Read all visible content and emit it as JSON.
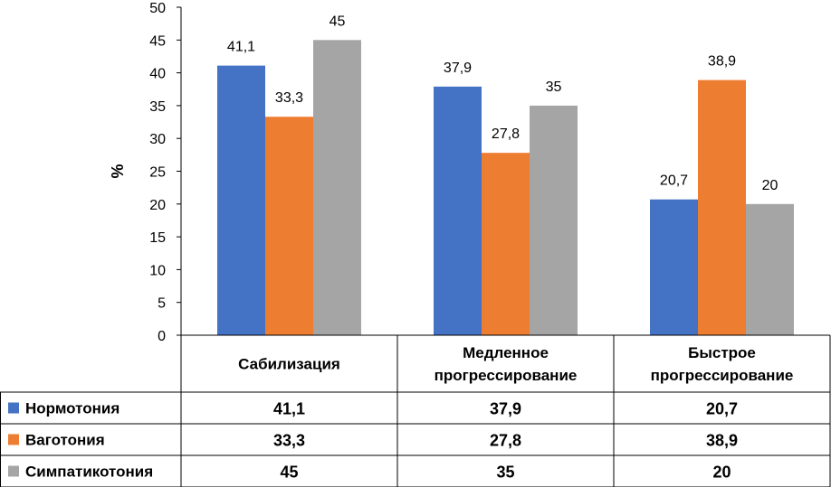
{
  "chart_data": {
    "type": "bar",
    "title": "",
    "xlabel": "",
    "ylabel": "%",
    "ylim": [
      0,
      50
    ],
    "yticks": [
      0,
      5,
      10,
      15,
      20,
      25,
      30,
      35,
      40,
      45,
      50
    ],
    "grid": false,
    "legend": "data-table-left",
    "categories": [
      "Сабилизация",
      "Медленное прогрессирование",
      "Быстрое прогрессирование"
    ],
    "category_lines": [
      [
        "Сабилизация"
      ],
      [
        "Медленное",
        "прогрессирование"
      ],
      [
        "Быстрое",
        "прогрессирование"
      ]
    ],
    "series": [
      {
        "name": "Нормотония",
        "color": "#4472C4",
        "values": [
          41.1,
          37.9,
          20.7
        ],
        "labels": [
          "41,1",
          "37,9",
          "20,7"
        ]
      },
      {
        "name": "Ваготония",
        "color": "#ED7D31",
        "values": [
          33.3,
          27.8,
          38.9
        ],
        "labels": [
          "33,3",
          "27,8",
          "38,9"
        ]
      },
      {
        "name": "Симпатикотония",
        "color": "#A5A5A5",
        "values": [
          45,
          35,
          20
        ],
        "labels": [
          "45",
          "35",
          "20"
        ]
      }
    ]
  }
}
